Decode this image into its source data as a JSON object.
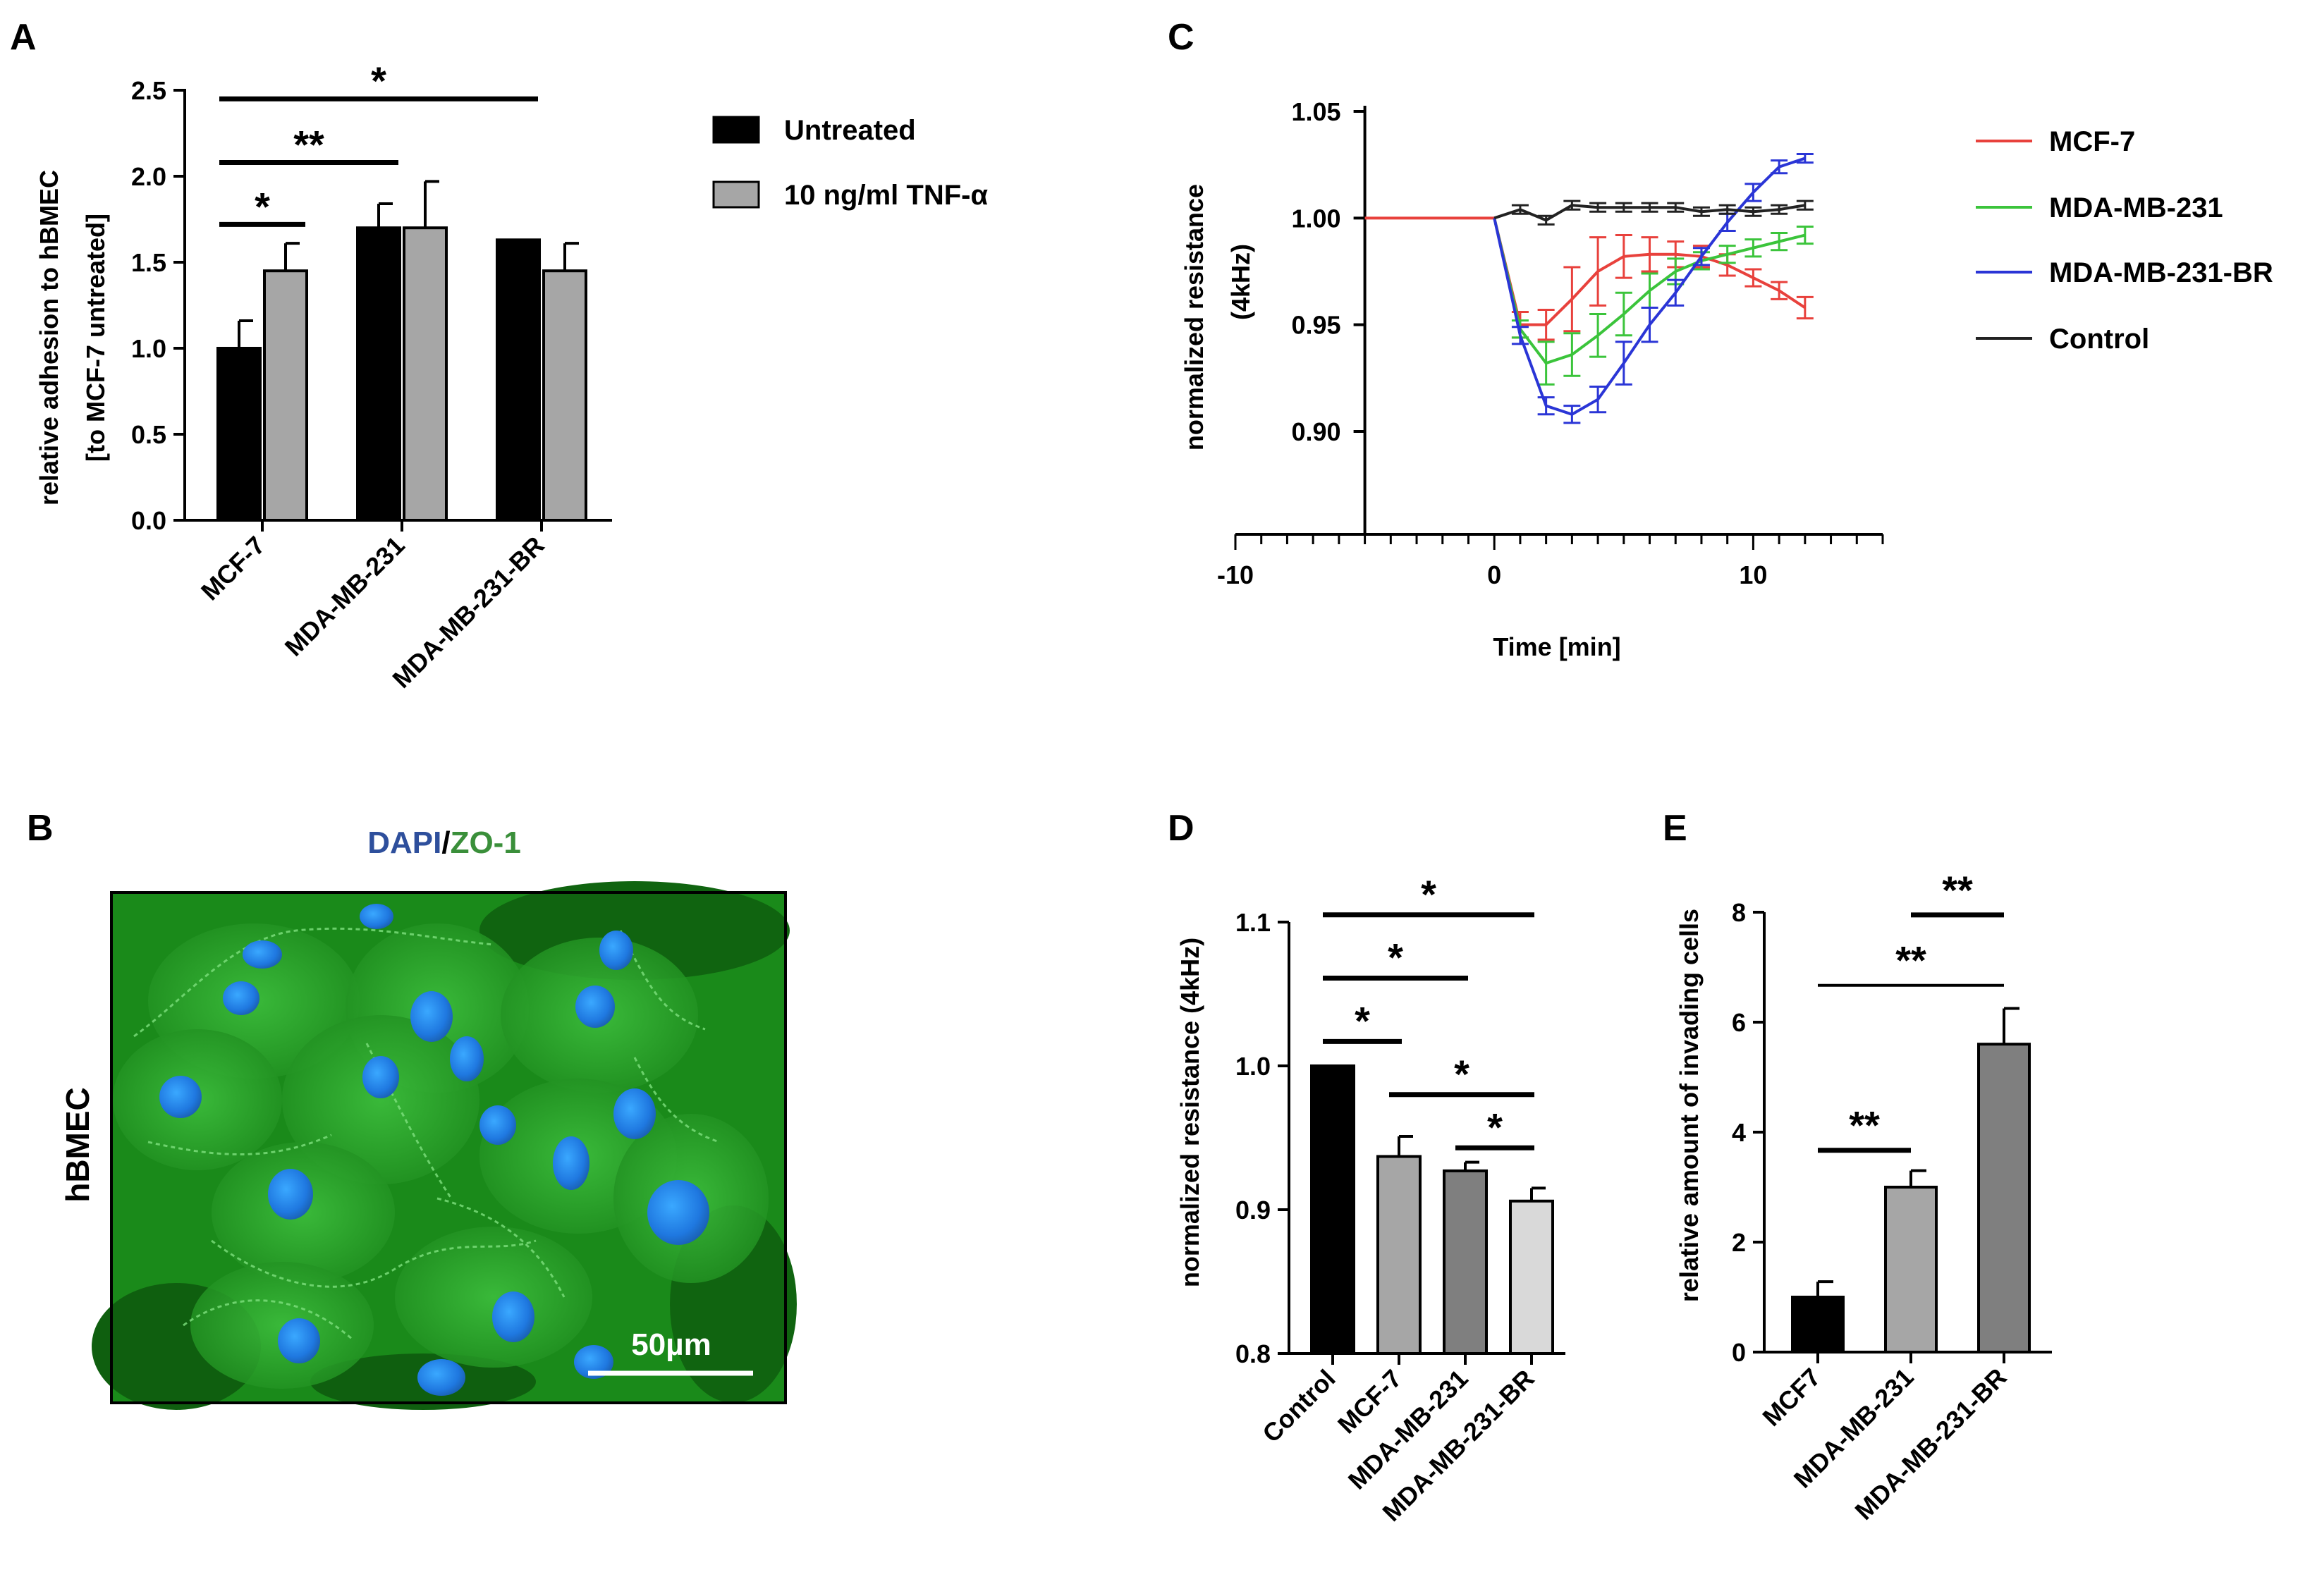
{
  "panels": {
    "A": "A",
    "B": "B",
    "C": "C",
    "D": "D",
    "E": "E"
  },
  "chart_data": [
    {
      "id": "A",
      "type": "bar",
      "ylabel_line1": "relative adhesion to hBMEC",
      "ylabel_line2": "[to MCF-7 untreated]",
      "ylim": [
        0,
        2.5
      ],
      "yticks": [
        "0.0",
        "0.5",
        "1.0",
        "1.5",
        "2.0",
        "2.5"
      ],
      "categories": [
        "MCF-7",
        "MDA-MB-231",
        "MDA-MB-231-BR"
      ],
      "series": [
        {
          "name": "Untreated",
          "color": "#000000",
          "values": [
            1.0,
            1.7,
            1.63
          ],
          "errors": [
            0.16,
            0.14,
            0
          ]
        },
        {
          "name": "10 ng/ml TNF-α",
          "color": "#a6a6a6",
          "values": [
            1.45,
            1.7,
            1.45
          ],
          "errors": [
            0.16,
            0.27,
            0.16
          ]
        }
      ],
      "significance": [
        {
          "label": "*",
          "from": [
            0,
            0
          ],
          "to": [
            0,
            1
          ],
          "y": 1.72
        },
        {
          "label": "**",
          "from": [
            0,
            0
          ],
          "to": [
            1,
            0
          ],
          "y": 2.08
        },
        {
          "label": "*",
          "from": [
            0,
            0
          ],
          "to": [
            2,
            0
          ],
          "y": 2.45
        }
      ]
    },
    {
      "id": "C",
      "type": "line",
      "xlabel": "Time [min]",
      "ylabel_line1": "normalized resistance",
      "ylabel_line2": "(4kHz)",
      "xlim": [
        -10,
        15
      ],
      "ylim": [
        0.875,
        1.05
      ],
      "xticks": [
        "-10",
        "0",
        "10"
      ],
      "yticks": [
        "0.90",
        "0.95",
        "1.00",
        "1.05"
      ],
      "series": [
        {
          "name": "MCF-7",
          "color": "#e8413c",
          "x": [
            0,
            1,
            2,
            3,
            4,
            5,
            6,
            7,
            8,
            9,
            10,
            11,
            12
          ],
          "y": [
            1.0,
            0.95,
            0.95,
            0.962,
            0.975,
            0.982,
            0.983,
            0.983,
            0.982,
            0.978,
            0.972,
            0.966,
            0.958
          ],
          "err": [
            0,
            0.006,
            0.007,
            0.015,
            0.016,
            0.01,
            0.008,
            0.006,
            0.005,
            0.005,
            0.004,
            0.004,
            0.005
          ]
        },
        {
          "name": "MDA-MB-231",
          "color": "#3bc43b",
          "x": [
            0,
            1,
            2,
            3,
            4,
            5,
            6,
            7,
            8,
            9,
            10,
            11,
            12
          ],
          "y": [
            1.0,
            0.948,
            0.932,
            0.936,
            0.945,
            0.955,
            0.966,
            0.975,
            0.98,
            0.983,
            0.986,
            0.989,
            0.992
          ],
          "err": [
            0,
            0.004,
            0.01,
            0.01,
            0.01,
            0.01,
            0.008,
            0.006,
            0.004,
            0.004,
            0.004,
            0.004,
            0.004
          ]
        },
        {
          "name": "MDA-MB-231-BR",
          "color": "#2a35d6",
          "x": [
            0,
            1,
            2,
            3,
            4,
            5,
            6,
            7,
            8,
            9,
            10,
            11,
            12
          ],
          "y": [
            1.0,
            0.945,
            0.912,
            0.908,
            0.915,
            0.932,
            0.95,
            0.965,
            0.982,
            0.998,
            1.012,
            1.024,
            1.028
          ],
          "err": [
            0,
            0.004,
            0.004,
            0.004,
            0.006,
            0.01,
            0.008,
            0.006,
            0.004,
            0.004,
            0.004,
            0.003,
            0.002
          ]
        },
        {
          "name": "Control",
          "color": "#222222",
          "x": [
            0,
            1,
            2,
            3,
            4,
            5,
            6,
            7,
            8,
            9,
            10,
            11,
            12
          ],
          "y": [
            1.0,
            1.004,
            0.999,
            1.006,
            1.005,
            1.005,
            1.005,
            1.005,
            1.003,
            1.004,
            1.003,
            1.004,
            1.006
          ],
          "err": [
            0,
            0.002,
            0.002,
            0.002,
            0.002,
            0.002,
            0.002,
            0.002,
            0.002,
            0.002,
            0.002,
            0.002,
            0.002
          ]
        }
      ]
    },
    {
      "id": "D",
      "type": "bar",
      "ylabel": "normalized resistance (4kHz)",
      "ylim": [
        0.8,
        1.1
      ],
      "yticks": [
        "0.8",
        "0.9",
        "1.0",
        "1.1"
      ],
      "categories": [
        "Control",
        "MCF-7",
        "MDA-MB-231",
        "MDA-MB-231-BR"
      ],
      "values": [
        1.0,
        0.937,
        0.927,
        0.906
      ],
      "errors": [
        0,
        0.014,
        0.006,
        0.009
      ],
      "colors": [
        "#000000",
        "#a6a6a6",
        "#7f7f7f",
        "#d9d9d9"
      ],
      "significance": [
        {
          "label": "*",
          "from": 0,
          "to": 3,
          "y": 1.105
        },
        {
          "label": "*",
          "from": 0,
          "to": 2,
          "y": 1.061
        },
        {
          "label": "*",
          "from": 0,
          "to": 1,
          "y": 1.017
        },
        {
          "label": "*",
          "from": 1,
          "to": 3,
          "y": 0.98
        },
        {
          "label": "*",
          "from": 2,
          "to": 3,
          "y": 0.943
        }
      ]
    },
    {
      "id": "E",
      "type": "bar",
      "ylabel": "relative amount of invading cells",
      "ylim": [
        0,
        8
      ],
      "yticks": [
        "0",
        "2",
        "4",
        "6",
        "8"
      ],
      "categories": [
        "MCF7",
        "MDA-MB-231",
        "MDA-MB-231-BR"
      ],
      "values": [
        1.0,
        3.0,
        5.6
      ],
      "errors": [
        0.28,
        0.3,
        0.65
      ],
      "colors": [
        "#000000",
        "#a6a6a6",
        "#7f7f7f"
      ],
      "significance": [
        {
          "label": "**",
          "from": 1,
          "to": 2,
          "y": 7.95
        },
        {
          "label": "**",
          "from": 0,
          "to": 2,
          "y": 6.67
        },
        {
          "label": "**",
          "from": 0,
          "to": 1,
          "y": 3.67
        }
      ]
    }
  ],
  "image_panel": {
    "title_part1": "DAPI",
    "title_sep": "/",
    "title_part2": "ZO-1",
    "row_label": "hBMEC",
    "scale_bar_label": "50µm",
    "title_colors": {
      "dapi": "#2e4f9c",
      "zo1": "#3a8f3a"
    }
  }
}
